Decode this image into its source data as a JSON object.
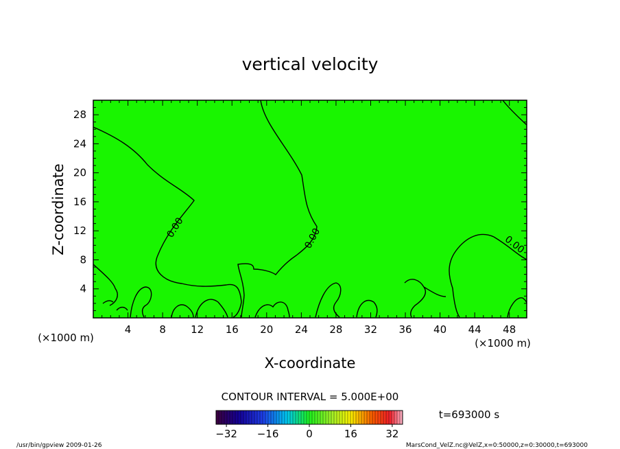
{
  "chart_data": {
    "type": "heatmap",
    "title": "vertical velocity",
    "xlabel": "X-coordinate",
    "ylabel": "Z-coordinate",
    "x_unit_left": "(×1000 m)",
    "x_unit_right": "(×1000 m)",
    "xlim": [
      0,
      50
    ],
    "ylim": [
      0,
      30
    ],
    "x_ticks": [
      4,
      8,
      12,
      16,
      20,
      24,
      28,
      32,
      36,
      40,
      44,
      48
    ],
    "y_ticks": [
      4,
      8,
      12,
      16,
      20,
      24,
      28
    ],
    "field_color": "#19f500",
    "contour_labels": [
      "0.00",
      "0.00",
      "0.00"
    ],
    "contour_interval_text": "CONTOUR INTERVAL = 5.000E+00",
    "time_text": "t=693000 s",
    "colorbar": {
      "min": -36,
      "max": 36,
      "ticks": [
        -32,
        -16,
        0,
        16,
        32
      ]
    }
  },
  "footer": {
    "left": "/usr/bin/gpview   2009-01-26",
    "right": "MarsCond_VelZ.nc@VelZ,x=0:50000,z=0:30000,t=693000"
  }
}
